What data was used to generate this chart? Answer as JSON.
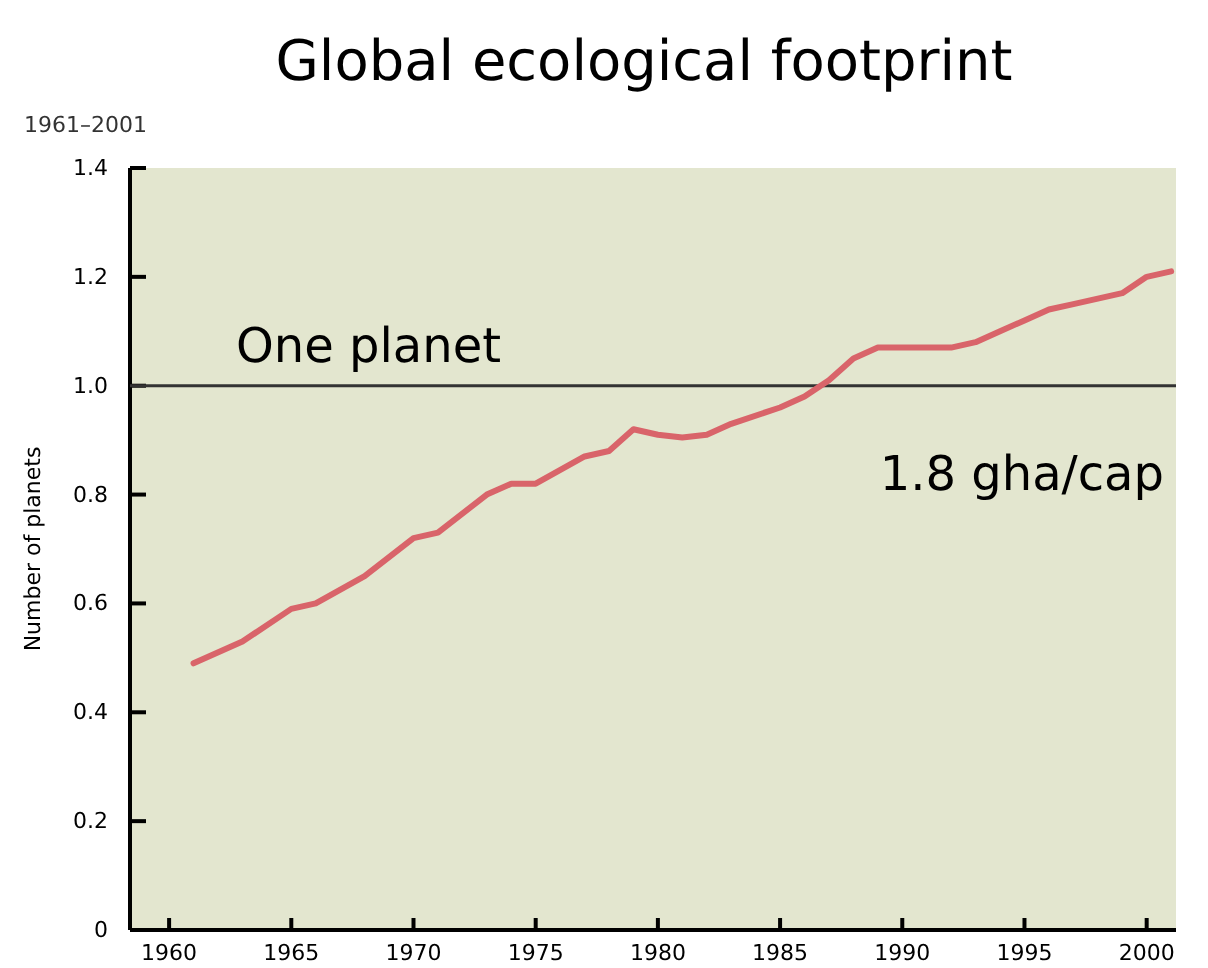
{
  "chart_data": {
    "type": "line",
    "title": "Global ecological footprint",
    "subtitle": "1961–2001",
    "ylabel": "Number of planets",
    "x": [
      1961,
      1963,
      1965,
      1966,
      1968,
      1970,
      1971,
      1973,
      1974,
      1975,
      1977,
      1978,
      1979,
      1980,
      1981,
      1982,
      1983,
      1985,
      1986,
      1987,
      1988,
      1989,
      1990,
      1992,
      1993,
      1994,
      1995,
      1996,
      1997,
      1998,
      1999,
      2000,
      2001
    ],
    "series": [
      {
        "color": "#d9646a",
        "values": [
          0.49,
          0.53,
          0.59,
          0.6,
          0.65,
          0.72,
          0.73,
          0.8,
          0.82,
          0.82,
          0.87,
          0.88,
          0.92,
          0.91,
          0.905,
          0.91,
          0.93,
          0.96,
          0.98,
          1.01,
          1.05,
          1.07,
          1.07,
          1.07,
          1.08,
          1.1,
          1.12,
          1.14,
          1.15,
          1.16,
          1.17,
          1.2,
          1.21
        ]
      }
    ],
    "xlim": [
      1958.4,
      2001.2
    ],
    "xticks": [
      1960,
      1965,
      1970,
      1975,
      1980,
      1985,
      1990,
      1995,
      2000
    ],
    "ylim": [
      0,
      1.4
    ],
    "yticks": [
      {
        "value": 0,
        "label": "0"
      },
      0.2,
      0.4,
      0.6,
      0.8,
      {
        "value": 1,
        "label": "1.0"
      },
      1.2,
      1.4
    ],
    "ref_lines": [
      {
        "axis": "y",
        "value": 1,
        "label": "One planet",
        "color": "#333333"
      }
    ],
    "annotations": [
      "1.8 gha/cap"
    ],
    "grid": false,
    "marker": "none",
    "line_style": "solid"
  }
}
